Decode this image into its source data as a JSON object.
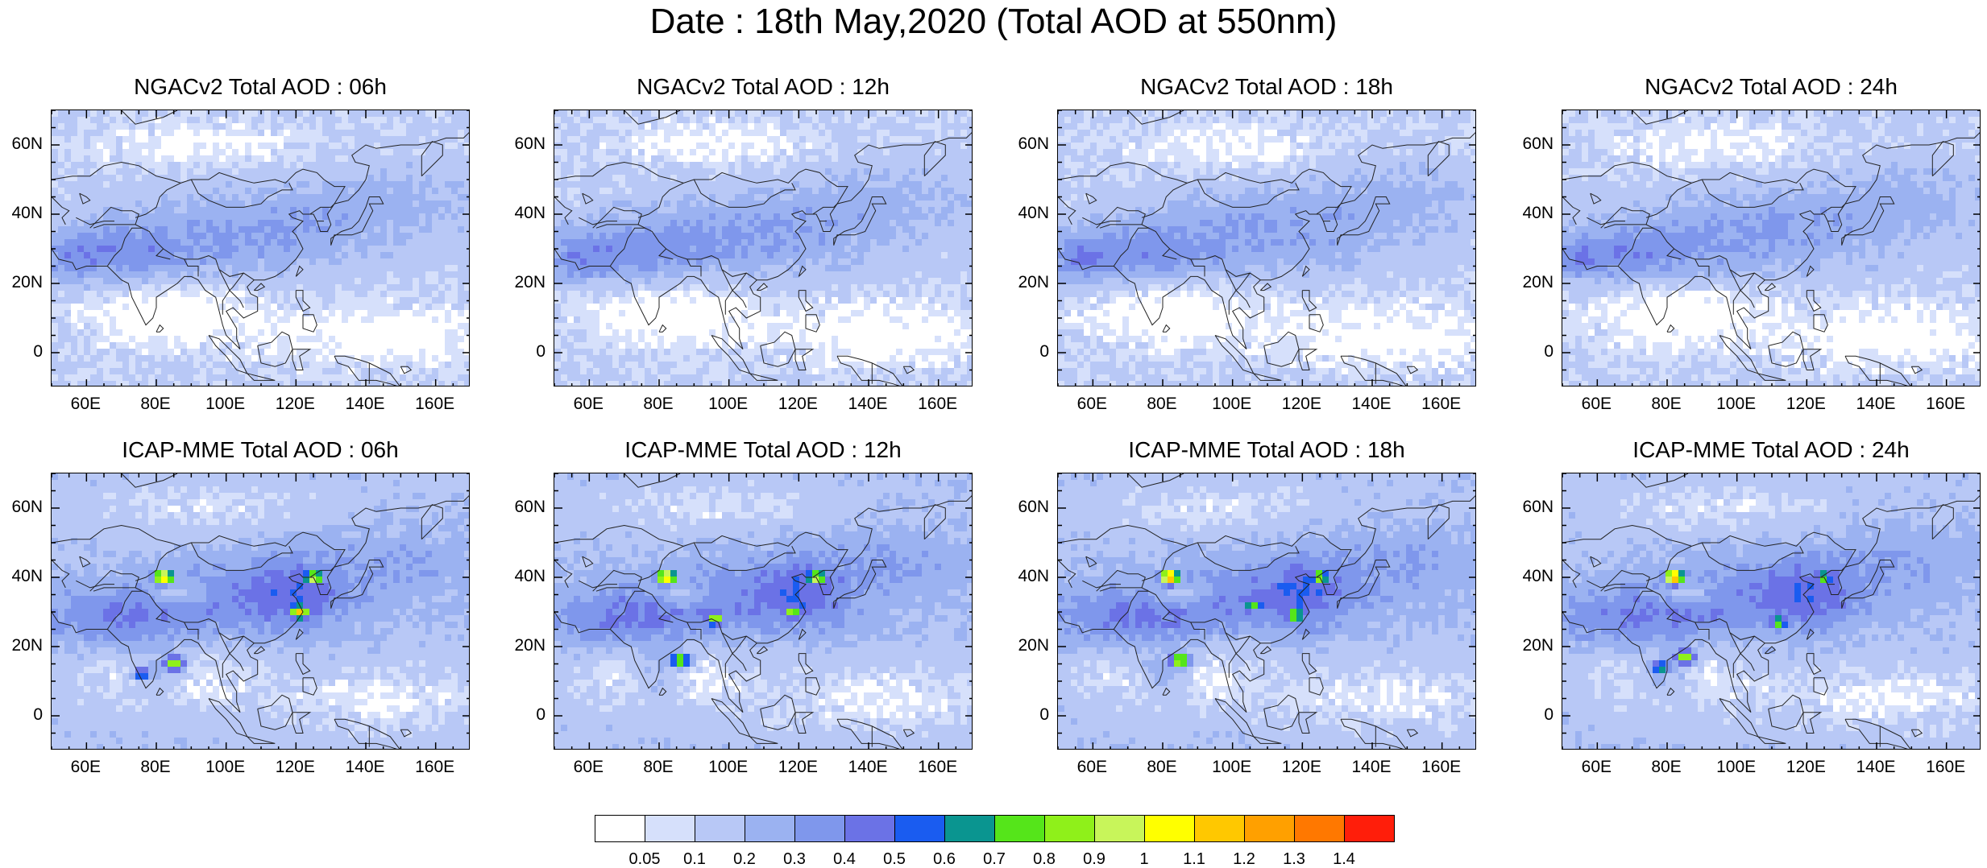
{
  "title": "Date : 18th May,2020 (Total AOD at 550nm)",
  "y_ticks": [
    "60N",
    "40N",
    "20N",
    "0"
  ],
  "x_ticks": [
    "60E",
    "80E",
    "100E",
    "120E",
    "140E",
    "160E"
  ],
  "chart_data": [
    {
      "type": "heatmap",
      "model": "NGACv2",
      "title": "NGACv2 Total AOD : 06h",
      "forecast_hour": "06h",
      "xlim": [
        50,
        170
      ],
      "ylim": [
        -10,
        70
      ],
      "xlabel": "",
      "ylabel": "",
      "hotspots": []
    },
    {
      "type": "heatmap",
      "model": "NGACv2",
      "title": "NGACv2 Total AOD : 12h",
      "forecast_hour": "12h",
      "xlim": [
        50,
        170
      ],
      "ylim": [
        -10,
        70
      ],
      "xlabel": "",
      "ylabel": "",
      "hotspots": []
    },
    {
      "type": "heatmap",
      "model": "NGACv2",
      "title": "NGACv2 Total AOD : 18h",
      "forecast_hour": "18h",
      "xlim": [
        50,
        170
      ],
      "ylim": [
        -10,
        70
      ],
      "xlabel": "",
      "ylabel": "",
      "hotspots": []
    },
    {
      "type": "heatmap",
      "model": "NGACv2",
      "title": "NGACv2 Total AOD : 24h",
      "forecast_hour": "24h",
      "xlim": [
        50,
        170
      ],
      "ylim": [
        -10,
        70
      ],
      "xlabel": "",
      "ylabel": "",
      "hotspots": []
    },
    {
      "type": "heatmap",
      "model": "ICAP-MME",
      "title": "ICAP-MME Total AOD : 06h",
      "forecast_hour": "06h",
      "xlim": [
        50,
        170
      ],
      "ylim": [
        -10,
        70
      ],
      "xlabel": "",
      "ylabel": "",
      "hotspots": [
        {
          "lon": 82,
          "lat": 40,
          "value": 1.2
        },
        {
          "lon": 125,
          "lat": 40,
          "value": 1.0
        },
        {
          "lon": 121,
          "lat": 30,
          "value": 1.2
        },
        {
          "lon": 85,
          "lat": 15,
          "value": 0.9
        },
        {
          "lon": 76,
          "lat": 12,
          "value": 0.6
        }
      ]
    },
    {
      "type": "heatmap",
      "model": "ICAP-MME",
      "title": "ICAP-MME Total AOD : 12h",
      "forecast_hour": "12h",
      "xlim": [
        50,
        170
      ],
      "ylim": [
        -10,
        70
      ],
      "xlabel": "",
      "ylabel": "",
      "hotspots": [
        {
          "lon": 82,
          "lat": 40,
          "value": 1.2
        },
        {
          "lon": 125,
          "lat": 40,
          "value": 1.0
        },
        {
          "lon": 118,
          "lat": 30,
          "value": 0.9
        },
        {
          "lon": 86,
          "lat": 16,
          "value": 0.9
        },
        {
          "lon": 96,
          "lat": 28,
          "value": 0.9
        }
      ]
    },
    {
      "type": "heatmap",
      "model": "ICAP-MME",
      "title": "ICAP-MME Total AOD : 18h",
      "forecast_hour": "18h",
      "xlim": [
        50,
        170
      ],
      "ylim": [
        -10,
        70
      ],
      "xlabel": "",
      "ylabel": "",
      "hotspots": [
        {
          "lon": 82,
          "lat": 40,
          "value": 1.3
        },
        {
          "lon": 125,
          "lat": 40,
          "value": 0.9
        },
        {
          "lon": 118,
          "lat": 29,
          "value": 0.9
        },
        {
          "lon": 85,
          "lat": 16,
          "value": 1.0
        },
        {
          "lon": 106,
          "lat": 32,
          "value": 0.8
        }
      ]
    },
    {
      "type": "heatmap",
      "model": "ICAP-MME",
      "title": "ICAP-MME Total AOD : 24h",
      "forecast_hour": "24h",
      "xlim": [
        50,
        170
      ],
      "ylim": [
        -10,
        70
      ],
      "xlabel": "",
      "ylabel": "",
      "hotspots": [
        {
          "lon": 82,
          "lat": 40,
          "value": 1.3
        },
        {
          "lon": 125,
          "lat": 40,
          "value": 0.8
        },
        {
          "lon": 112,
          "lat": 27,
          "value": 0.8
        },
        {
          "lon": 85,
          "lat": 17,
          "value": 0.9
        },
        {
          "lon": 78,
          "lat": 14,
          "value": 0.7
        }
      ]
    }
  ],
  "colorbar": {
    "labels": [
      "0.05",
      "0.1",
      "0.2",
      "0.3",
      "0.4",
      "0.5",
      "0.6",
      "0.7",
      "0.8",
      "0.9",
      "1",
      "1.1",
      "1.2",
      "1.3",
      "1.4"
    ],
    "colors": [
      "#ffffff",
      "#d6e0fb",
      "#b8c8f6",
      "#9bb2f1",
      "#7f97ec",
      "#6b72e6",
      "#1a5cf0",
      "#0a9590",
      "#55e51a",
      "#8ff01a",
      "#c8f55a",
      "#ffff00",
      "#ffc800",
      "#ffa000",
      "#ff7800",
      "#ff1e0a"
    ]
  }
}
